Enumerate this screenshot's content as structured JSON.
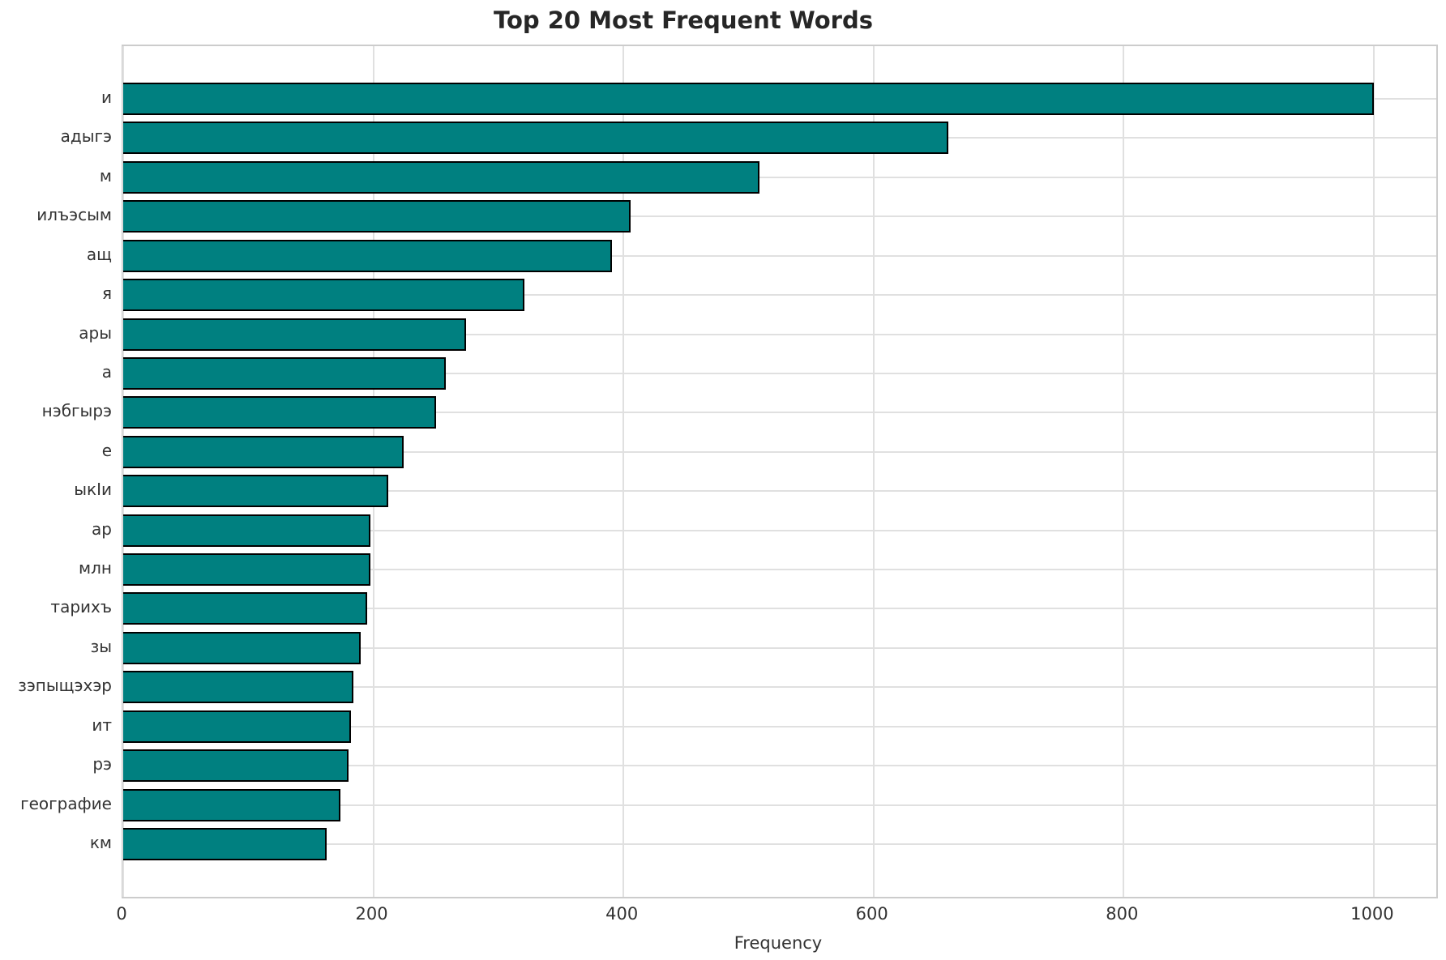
{
  "title": "Top 20 Most Frequent Words",
  "chart_data": {
    "type": "bar",
    "orientation": "horizontal",
    "title": "Top 20 Most Frequent Words",
    "xlabel": "Frequency",
    "ylabel": "",
    "categories": [
      "и",
      "адыгэ",
      "м",
      "илъэсым",
      "ащ",
      "я",
      "ары",
      "а",
      "нэбгырэ",
      "е",
      "ыкIи",
      "ар",
      "млн",
      "тарихъ",
      "зы",
      "зэпыщэхэр",
      "ит",
      "рэ",
      "географие",
      "км"
    ],
    "values": [
      1000,
      660,
      509,
      406,
      391,
      321,
      274,
      258,
      250,
      224,
      212,
      198,
      198,
      195,
      190,
      184,
      182,
      180,
      174,
      163
    ],
    "xlim": [
      0,
      1050
    ],
    "xticks": [
      0,
      200,
      400,
      600,
      800,
      1000
    ],
    "grid": true,
    "legend": null,
    "bar_color": "#008080",
    "bar_edge_color": "#000000"
  }
}
